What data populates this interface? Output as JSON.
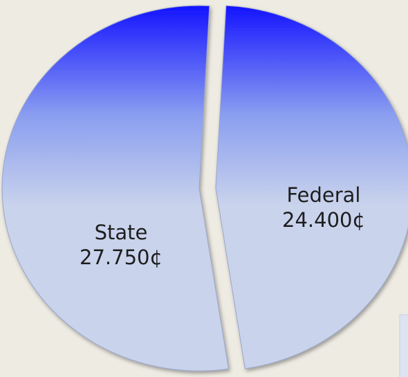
{
  "chart_data": {
    "type": "pie",
    "categories": [
      "State",
      "Federal"
    ],
    "values": [
      27.75,
      24.4
    ],
    "value_labels": [
      "27.750¢",
      "24.400¢"
    ],
    "colors": [
      "#1414ff",
      "#c9d3ec"
    ]
  }
}
